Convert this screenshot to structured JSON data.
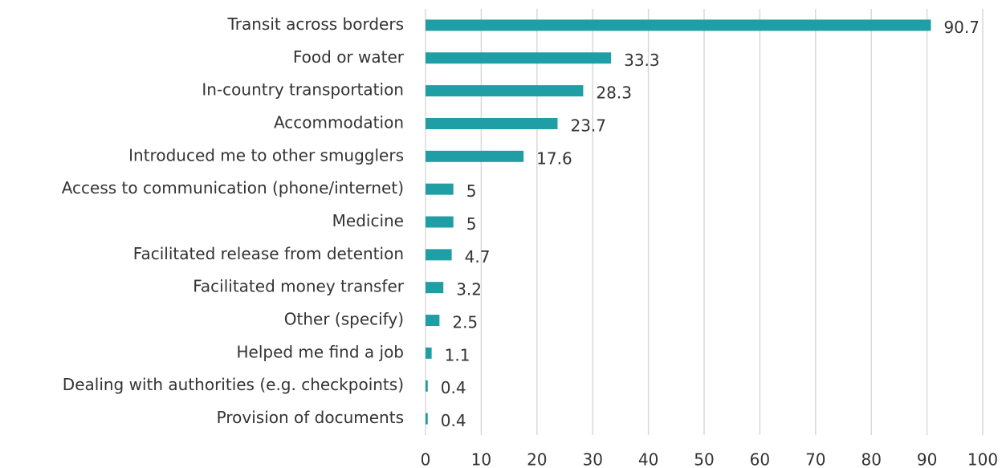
{
  "chart_data": {
    "type": "bar",
    "orientation": "horizontal",
    "categories": [
      "Transit across borders",
      "Food or water",
      "In-country transportation",
      "Accommodation",
      "Introduced me to other smugglers",
      "Access to communication (phone/internet)",
      "Medicine",
      "Facilitated release from detention",
      "Facilitated money transfer",
      "Other (specify)",
      "Helped me find a job",
      "Dealing with authorities (e.g. checkpoints)",
      "Provision of documents"
    ],
    "values": [
      90.7,
      33.3,
      28.3,
      23.7,
      17.6,
      5,
      5,
      4.7,
      3.2,
      2.5,
      1.1,
      0.4,
      0.4
    ],
    "color": "#1f9ea5",
    "xlim": [
      0,
      100
    ],
    "xticks": [
      0,
      10,
      20,
      30,
      40,
      50,
      60,
      70,
      80,
      90,
      100
    ],
    "grid": true
  }
}
